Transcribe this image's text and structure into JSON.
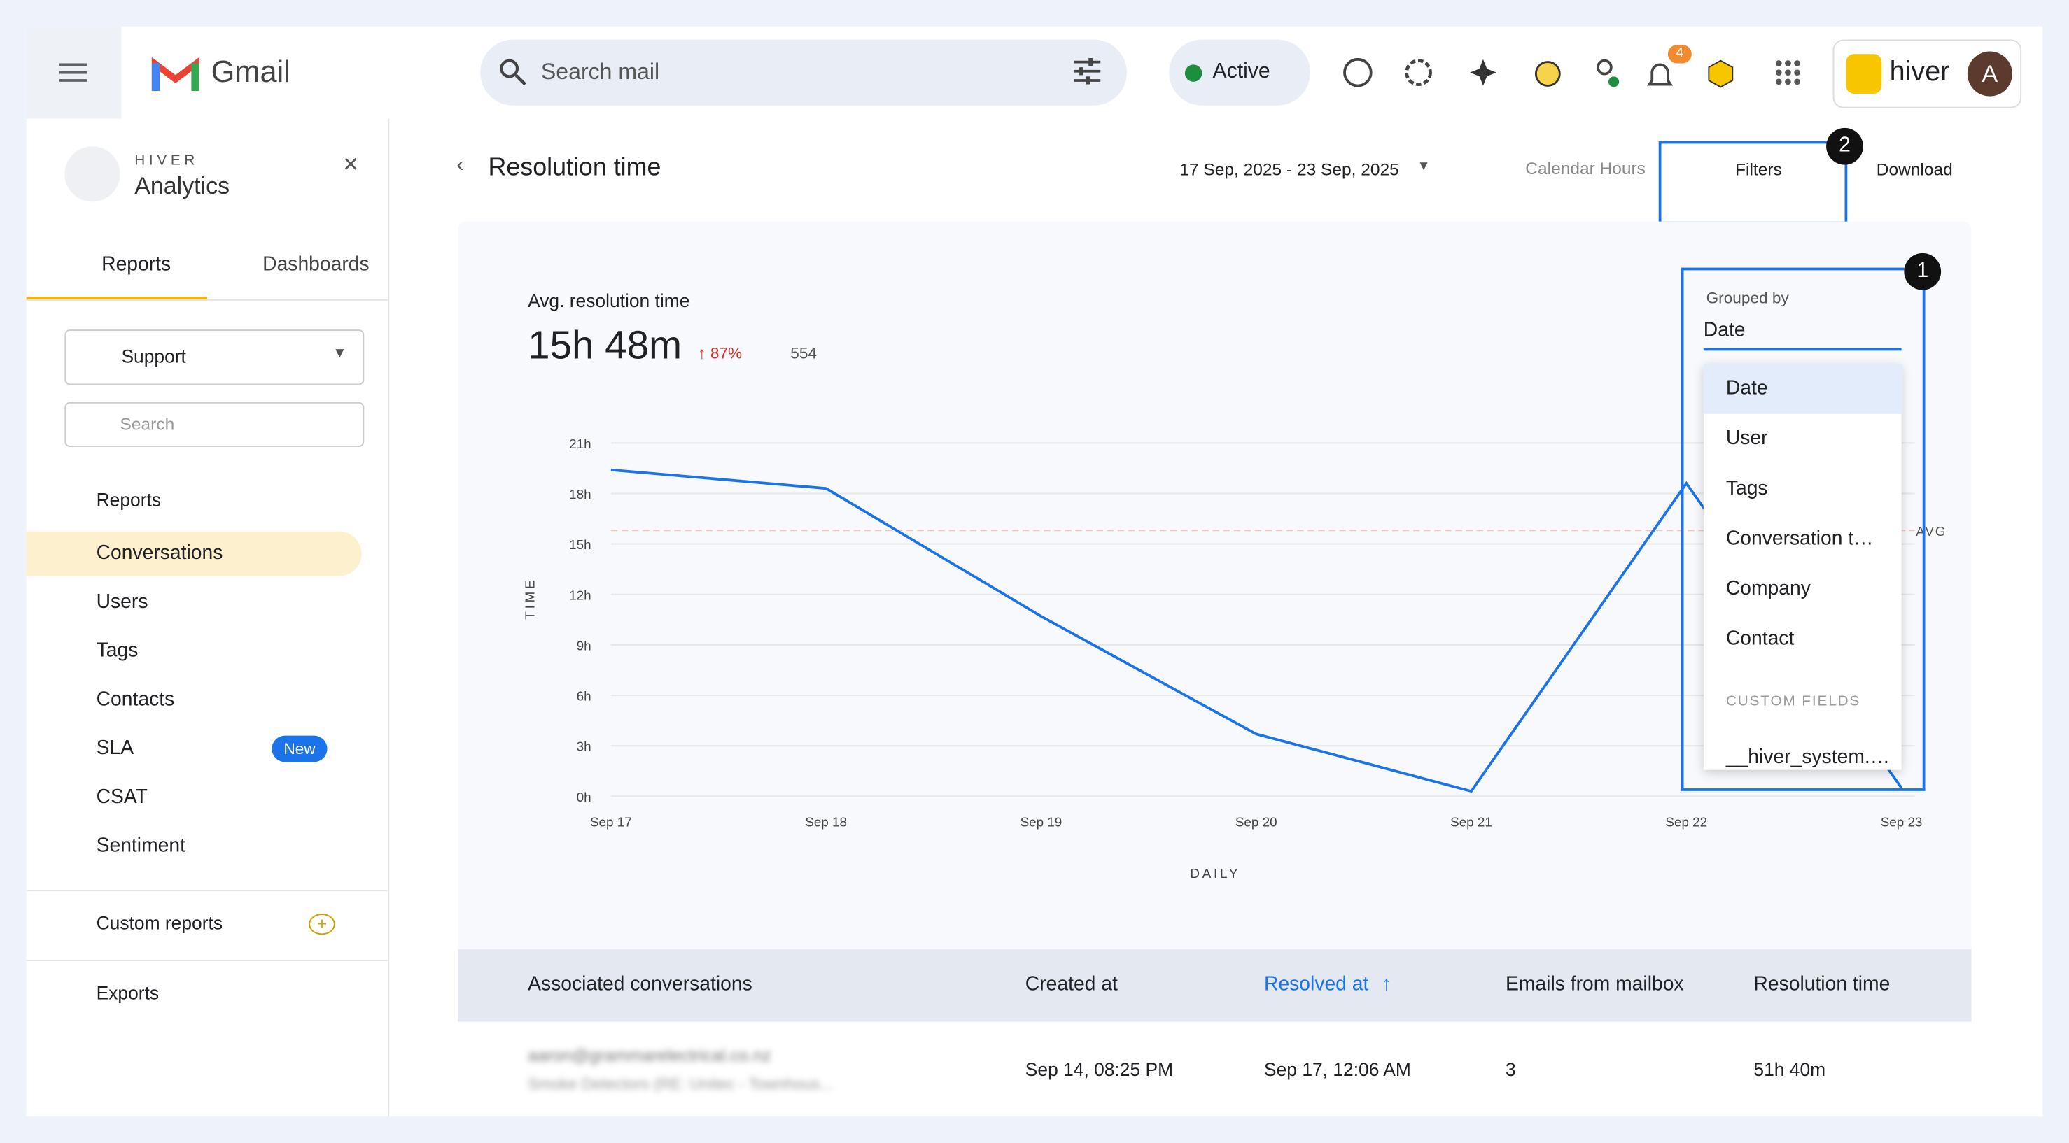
{
  "header": {
    "app": "Gmail",
    "search_placeholder": "Search mail",
    "status": "Active",
    "notification_count": "4",
    "brand": "hiver",
    "avatar": "A"
  },
  "sidebar": {
    "brand_top": "HIVER",
    "brand": "Analytics",
    "tabs": [
      "Reports",
      "Dashboards"
    ],
    "inbox": "Support",
    "search_placeholder": "Search",
    "section": "Reports",
    "items": [
      "Conversations",
      "Users",
      "Tags",
      "Contacts",
      "SLA",
      "CSAT",
      "Sentiment"
    ],
    "sla_badge": "New",
    "custom_reports": "Custom reports",
    "exports": "Exports"
  },
  "report": {
    "title": "Resolution time",
    "date_range": "17 Sep, 2025 - 23 Sep, 2025",
    "hours": "Calendar Hours",
    "filters": "Filters",
    "download": "Download",
    "metric_label": "Avg. resolution time",
    "metric_value": "15h 48m",
    "change": "87%",
    "email_count": "554",
    "markers": [
      "1",
      "2"
    ]
  },
  "chart": {
    "type": "line",
    "categories": [
      "Sep 17",
      "Sep 18",
      "Sep 19",
      "Sep 20",
      "Sep 21",
      "Sep 22",
      "Sep 23"
    ],
    "values": [
      19.4,
      18.3,
      10.7,
      3.7,
      0.3,
      18.6,
      0.5
    ],
    "color": "#1a73e8",
    "ylim": [
      0,
      21
    ],
    "yticks": [
      {
        "value": 0,
        "label": "0h"
      },
      {
        "value": 3,
        "label": "3h"
      },
      {
        "value": 6,
        "label": "6h"
      },
      {
        "value": 9,
        "label": "9h"
      },
      {
        "value": 12,
        "label": "12h"
      },
      {
        "value": 15,
        "label": "15h"
      },
      {
        "value": 18,
        "label": "18h"
      },
      {
        "value": 21,
        "label": "21h"
      }
    ],
    "grid": true,
    "y_label": "TIME",
    "x_label": "DAILY",
    "avg": 15.8,
    "avg_label": "AVG"
  },
  "grouped_by": {
    "label": "Grouped by",
    "selected": "Date",
    "options": [
      "Date",
      "User",
      "Tags",
      "Conversation t…",
      "Company",
      "Contact"
    ],
    "custom_fields_header": "CUSTOM FIELDS",
    "custom_fields": [
      "__hiver_system.…"
    ]
  },
  "table": {
    "headers": [
      "Associated conversations",
      "Created at",
      "Resolved at",
      "Emails from mailbox",
      "Resolution time"
    ],
    "rows": [
      {
        "contact": "aaron@grammarelectrical.co.nz",
        "subject": "Smoke Detectors (RE: Unitec - Townhous...",
        "created": "Sep 14, 08:25 PM",
        "resolved": "Sep 17, 12:06 AM",
        "emails": "3",
        "resolution": "51h 40m"
      }
    ]
  }
}
